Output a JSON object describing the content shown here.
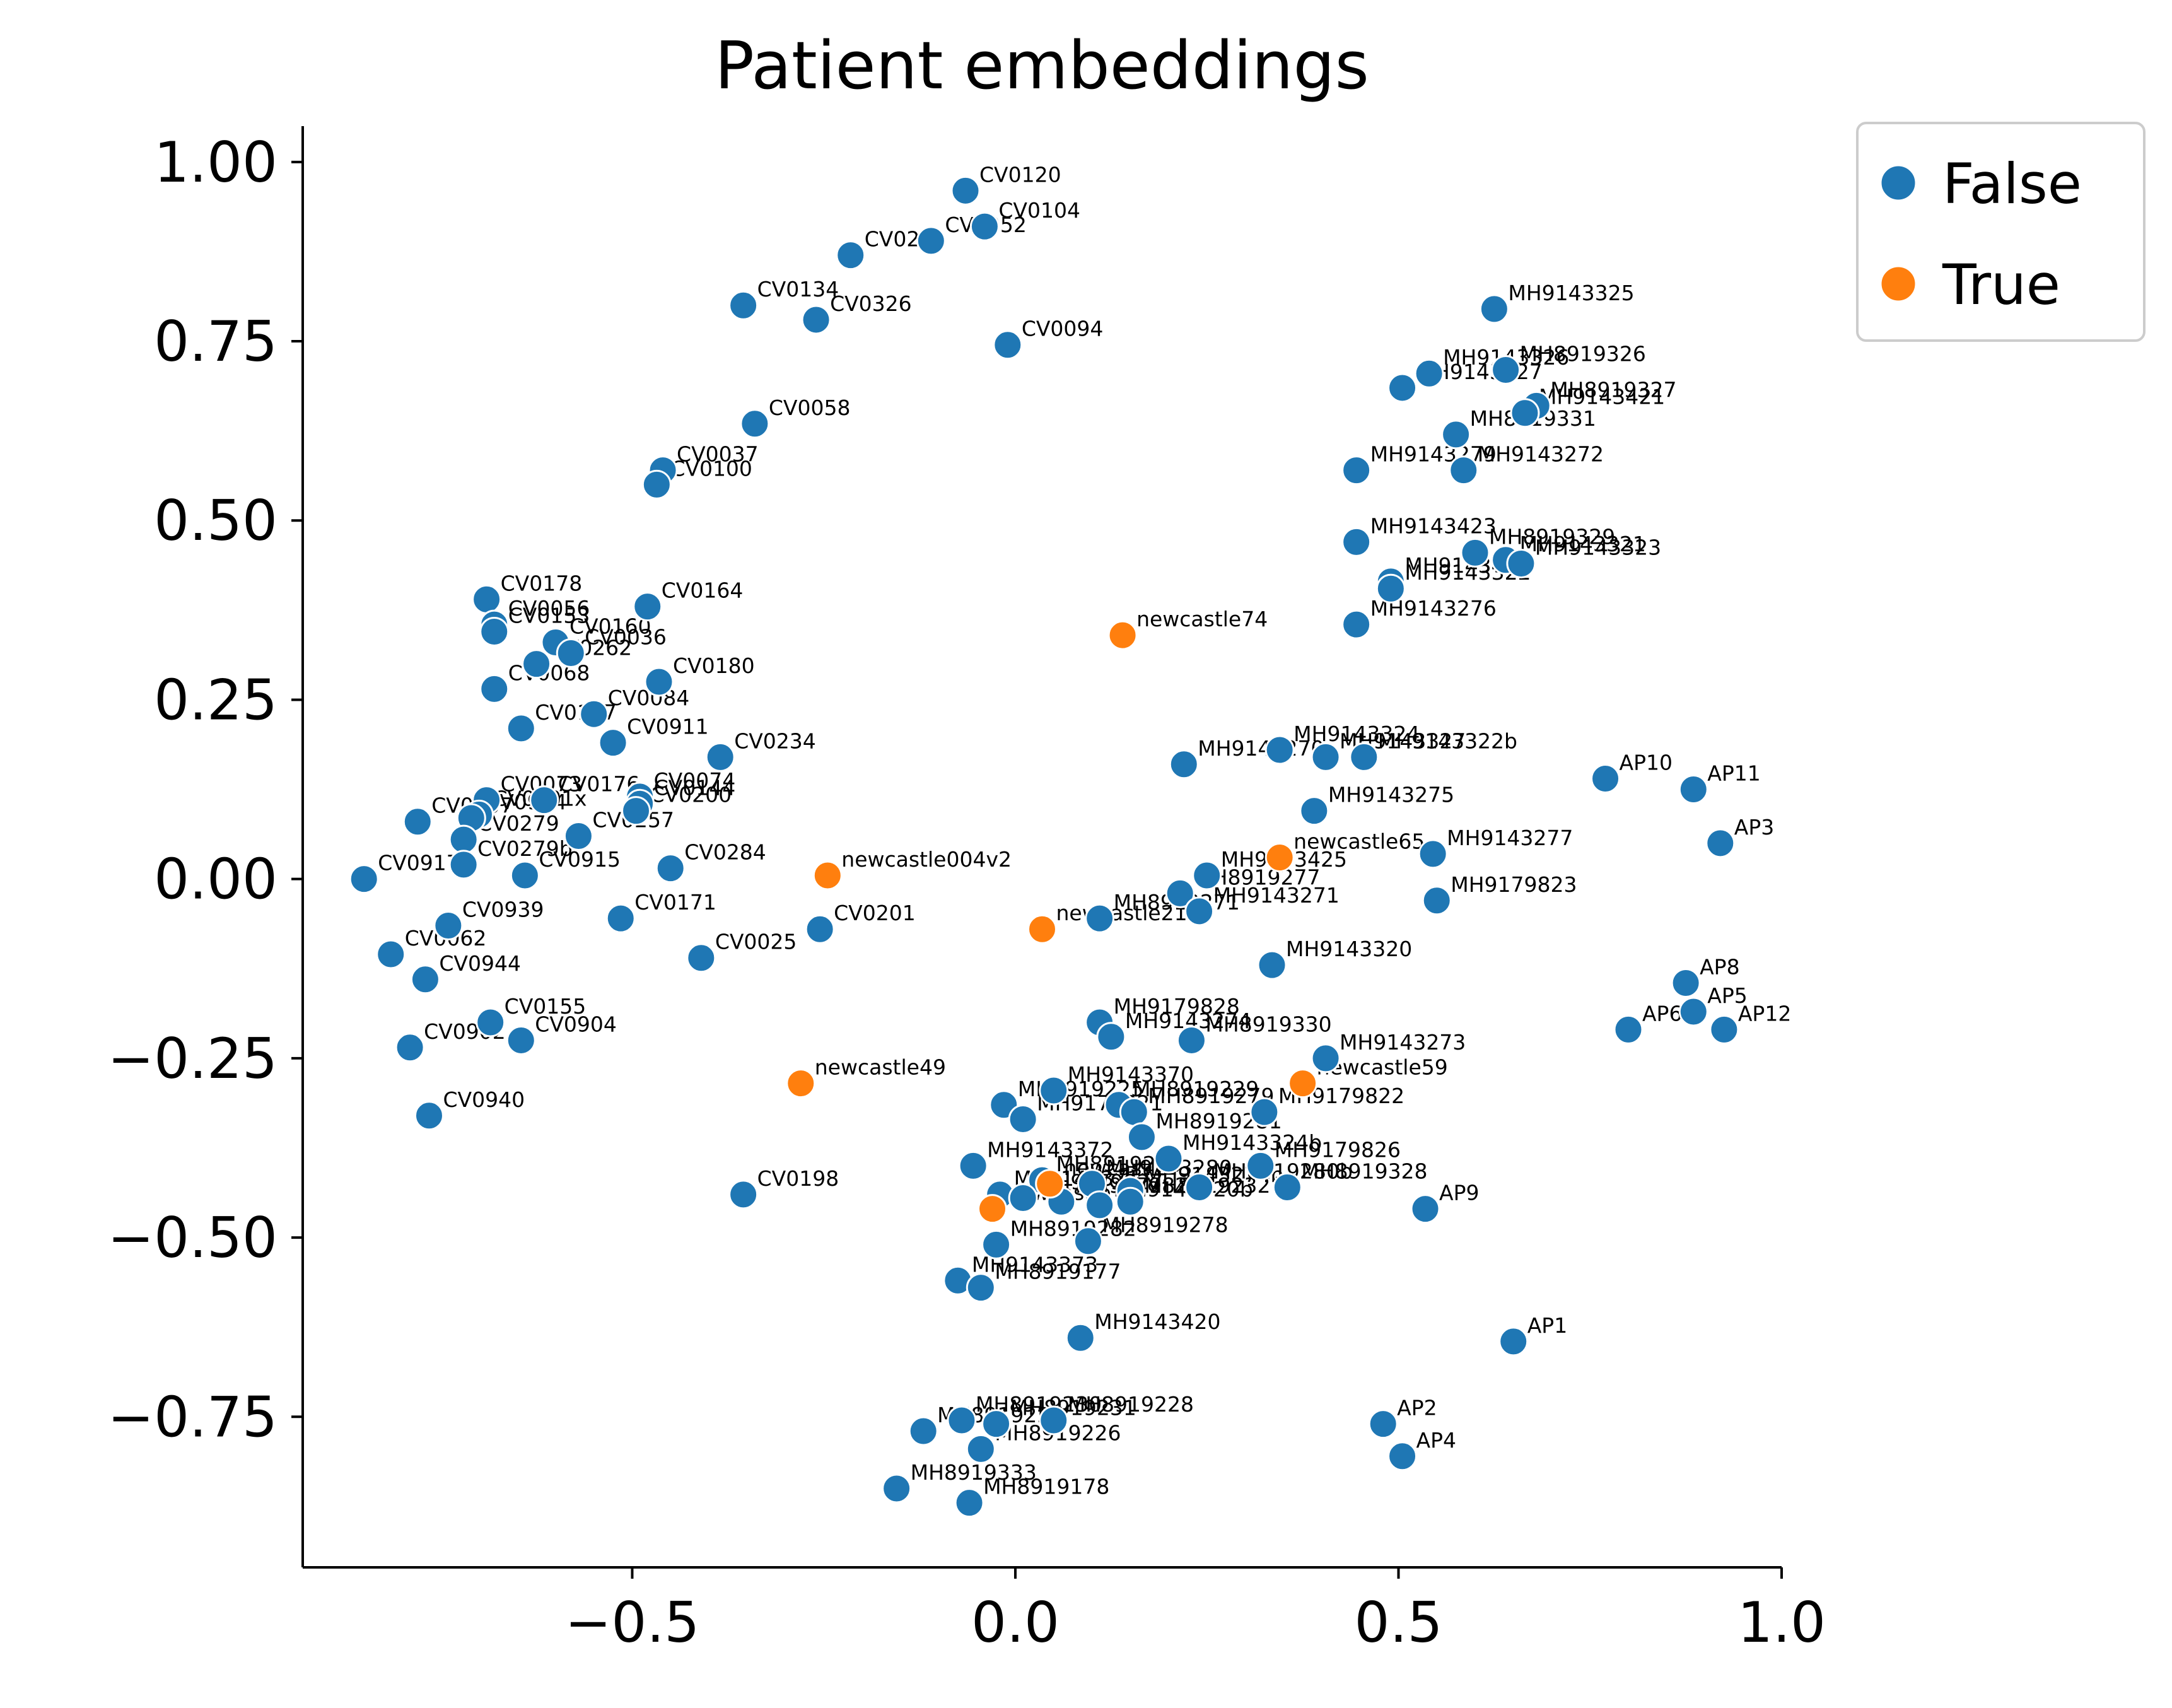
{
  "chart_data": {
    "type": "scatter",
    "title": "Patient embeddings",
    "xlabel": "",
    "ylabel": "",
    "xlim": [
      -0.93,
      1.0
    ],
    "ylim": [
      -0.96,
      1.05
    ],
    "xticks": [
      -0.5,
      0.0,
      0.5,
      1.0
    ],
    "xtick_labels": [
      "−0.5",
      "0.0",
      "0.5",
      "1.0"
    ],
    "yticks": [
      1.0,
      0.75,
      0.5,
      0.25,
      0.0,
      -0.25,
      -0.5,
      -0.75
    ],
    "ytick_labels": [
      "1.00",
      "0.75",
      "0.50",
      "0.25",
      "0.00",
      "−0.25",
      "−0.50",
      "−0.75"
    ],
    "grid": false,
    "legend": {
      "placement": "outside-top-right",
      "entries": [
        {
          "label": "False",
          "color": "#1f77b4"
        },
        {
          "label": "True",
          "color": "#ff7f0e"
        }
      ]
    },
    "series": [
      {
        "name": "False",
        "color": "#1f77b4",
        "points": [
          {
            "x": -0.065,
            "y": 0.96,
            "label": "CV0120"
          },
          {
            "x": -0.04,
            "y": 0.91,
            "label": "CV0104"
          },
          {
            "x": -0.11,
            "y": 0.89,
            "label": "CV0052"
          },
          {
            "x": -0.215,
            "y": 0.87,
            "label": "CV0231"
          },
          {
            "x": -0.355,
            "y": 0.8,
            "label": "CV0134"
          },
          {
            "x": -0.26,
            "y": 0.78,
            "label": "CV0326"
          },
          {
            "x": -0.01,
            "y": 0.745,
            "label": "CV0094"
          },
          {
            "x": -0.34,
            "y": 0.635,
            "label": "CV0058"
          },
          {
            "x": -0.46,
            "y": 0.57,
            "label": "CV0037"
          },
          {
            "x": -0.468,
            "y": 0.55,
            "label": "CV0100"
          },
          {
            "x": -0.69,
            "y": 0.39,
            "label": "CV0178"
          },
          {
            "x": -0.48,
            "y": 0.38,
            "label": "CV0164"
          },
          {
            "x": -0.68,
            "y": 0.355,
            "label": "CV0056"
          },
          {
            "x": -0.68,
            "y": 0.345,
            "label": "CV0153"
          },
          {
            "x": -0.6,
            "y": 0.33,
            "label": "CV0160"
          },
          {
            "x": -0.58,
            "y": 0.315,
            "label": "CV0036"
          },
          {
            "x": -0.625,
            "y": 0.3,
            "label": "CV0262"
          },
          {
            "x": -0.465,
            "y": 0.275,
            "label": "CV0180"
          },
          {
            "x": -0.68,
            "y": 0.265,
            "label": "CV0068"
          },
          {
            "x": -0.55,
            "y": 0.23,
            "label": "CV0084"
          },
          {
            "x": -0.645,
            "y": 0.21,
            "label": "CV0137"
          },
          {
            "x": -0.525,
            "y": 0.19,
            "label": "CV0911"
          },
          {
            "x": -0.385,
            "y": 0.17,
            "label": "CV0234"
          },
          {
            "x": -0.49,
            "y": 0.115,
            "label": "CV0074"
          },
          {
            "x": -0.49,
            "y": 0.105,
            "label": "CV0144"
          },
          {
            "x": -0.495,
            "y": 0.095,
            "label": "CV0200"
          },
          {
            "x": -0.69,
            "y": 0.11,
            "label": "CV0073"
          },
          {
            "x": -0.615,
            "y": 0.11,
            "label": "CV0176"
          },
          {
            "x": -0.7,
            "y": 0.09,
            "label": "CV0201x"
          },
          {
            "x": -0.78,
            "y": 0.08,
            "label": "CV0907"
          },
          {
            "x": -0.71,
            "y": 0.085,
            "label": "CV0934"
          },
          {
            "x": -0.57,
            "y": 0.06,
            "label": "CV0257"
          },
          {
            "x": -0.72,
            "y": 0.055,
            "label": "CV0279"
          },
          {
            "x": -0.72,
            "y": 0.02,
            "label": "CV0279b"
          },
          {
            "x": -0.64,
            "y": 0.005,
            "label": "CV0915"
          },
          {
            "x": -0.45,
            "y": 0.015,
            "label": "CV0284"
          },
          {
            "x": -0.85,
            "y": 0.0,
            "label": "CV0917"
          },
          {
            "x": -0.74,
            "y": -0.065,
            "label": "CV0939"
          },
          {
            "x": -0.515,
            "y": -0.055,
            "label": "CV0171"
          },
          {
            "x": -0.255,
            "y": -0.07,
            "label": "CV0201"
          },
          {
            "x": -0.815,
            "y": -0.105,
            "label": "CV0062"
          },
          {
            "x": -0.41,
            "y": -0.11,
            "label": "CV0025"
          },
          {
            "x": -0.77,
            "y": -0.14,
            "label": "CV0944"
          },
          {
            "x": -0.685,
            "y": -0.2,
            "label": "CV0155"
          },
          {
            "x": -0.79,
            "y": -0.235,
            "label": "CV0902"
          },
          {
            "x": -0.645,
            "y": -0.225,
            "label": "CV0904"
          },
          {
            "x": -0.765,
            "y": -0.33,
            "label": "CV0940"
          },
          {
            "x": -0.355,
            "y": -0.44,
            "label": "CV0198"
          },
          {
            "x": 0.625,
            "y": 0.795,
            "label": "MH9143325"
          },
          {
            "x": 0.64,
            "y": 0.71,
            "label": "MH8919326"
          },
          {
            "x": 0.54,
            "y": 0.705,
            "label": "MH9143326"
          },
          {
            "x": 0.505,
            "y": 0.685,
            "label": "MH9143427"
          },
          {
            "x": 0.68,
            "y": 0.66,
            "label": "MH8919327"
          },
          {
            "x": 0.665,
            "y": 0.65,
            "label": "MH9143421"
          },
          {
            "x": 0.575,
            "y": 0.62,
            "label": "MH8919331"
          },
          {
            "x": 0.445,
            "y": 0.57,
            "label": "MH9143279"
          },
          {
            "x": 0.585,
            "y": 0.57,
            "label": "MH9143272"
          },
          {
            "x": 0.445,
            "y": 0.47,
            "label": "MH9143423"
          },
          {
            "x": 0.6,
            "y": 0.455,
            "label": "MH8919329"
          },
          {
            "x": 0.64,
            "y": 0.445,
            "label": "MH9143321"
          },
          {
            "x": 0.66,
            "y": 0.44,
            "label": "MH9143323"
          },
          {
            "x": 0.49,
            "y": 0.415,
            "label": "MH9143422"
          },
          {
            "x": 0.49,
            "y": 0.405,
            "label": "MH9143322"
          },
          {
            "x": 0.445,
            "y": 0.355,
            "label": "MH9143276"
          },
          {
            "x": 0.22,
            "y": 0.16,
            "label": "MH9143270"
          },
          {
            "x": 0.345,
            "y": 0.18,
            "label": "MH9143324"
          },
          {
            "x": 0.405,
            "y": 0.17,
            "label": "MH9143327"
          },
          {
            "x": 0.455,
            "y": 0.17,
            "label": "MH9143322b"
          },
          {
            "x": 0.39,
            "y": 0.095,
            "label": "MH9143275"
          },
          {
            "x": 0.545,
            "y": 0.035,
            "label": "MH9143277"
          },
          {
            "x": 0.25,
            "y": 0.005,
            "label": "MH9143425"
          },
          {
            "x": 0.215,
            "y": -0.02,
            "label": "MH8919277"
          },
          {
            "x": 0.24,
            "y": -0.045,
            "label": "MH9143271"
          },
          {
            "x": 0.55,
            "y": -0.03,
            "label": "MH9179823"
          },
          {
            "x": 0.11,
            "y": -0.055,
            "label": "MH8919271"
          },
          {
            "x": 0.335,
            "y": -0.12,
            "label": "MH9143320"
          },
          {
            "x": 0.11,
            "y": -0.2,
            "label": "MH9179828"
          },
          {
            "x": 0.125,
            "y": -0.22,
            "label": "MH9143274"
          },
          {
            "x": 0.23,
            "y": -0.225,
            "label": "MH8919330"
          },
          {
            "x": 0.405,
            "y": -0.25,
            "label": "MH9143273"
          },
          {
            "x": 0.05,
            "y": -0.295,
            "label": "MH9143370"
          },
          {
            "x": -0.015,
            "y": -0.315,
            "label": "MH8919225"
          },
          {
            "x": 0.01,
            "y": -0.335,
            "label": "MH9179821"
          },
          {
            "x": 0.135,
            "y": -0.315,
            "label": "MH8919229"
          },
          {
            "x": 0.155,
            "y": -0.325,
            "label": "MH8919279"
          },
          {
            "x": 0.325,
            "y": -0.325,
            "label": "MH9179822"
          },
          {
            "x": 0.165,
            "y": -0.36,
            "label": "MH8919281"
          },
          {
            "x": -0.055,
            "y": -0.4,
            "label": "MH9143372"
          },
          {
            "x": 0.2,
            "y": -0.39,
            "label": "MH9143324b"
          },
          {
            "x": 0.32,
            "y": -0.4,
            "label": "MH9179826"
          },
          {
            "x": 0.355,
            "y": -0.43,
            "label": "MH8919328"
          },
          {
            "x": 0.035,
            "y": -0.42,
            "label": "MH8919280"
          },
          {
            "x": 0.1,
            "y": -0.425,
            "label": "MH9143280"
          },
          {
            "x": 0.15,
            "y": -0.435,
            "label": "MH9143274b"
          },
          {
            "x": 0.24,
            "y": -0.43,
            "label": "MH8919280b"
          },
          {
            "x": -0.02,
            "y": -0.44,
            "label": "MH9143371"
          },
          {
            "x": 0.01,
            "y": -0.445,
            "label": "MH9179827"
          },
          {
            "x": 0.06,
            "y": -0.45,
            "label": "MH9179825"
          },
          {
            "x": 0.11,
            "y": -0.455,
            "label": "MH9143320b"
          },
          {
            "x": 0.15,
            "y": -0.45,
            "label": "MH8919232"
          },
          {
            "x": 0.535,
            "y": -0.46,
            "label": "AP9"
          },
          {
            "x": -0.025,
            "y": -0.51,
            "label": "MH8919282"
          },
          {
            "x": 0.095,
            "y": -0.505,
            "label": "MH8919278"
          },
          {
            "x": -0.075,
            "y": -0.56,
            "label": "MH9143373"
          },
          {
            "x": -0.045,
            "y": -0.57,
            "label": "MH8919177"
          },
          {
            "x": 0.085,
            "y": -0.64,
            "label": "MH9143420"
          },
          {
            "x": 0.65,
            "y": -0.645,
            "label": "AP1"
          },
          {
            "x": -0.07,
            "y": -0.755,
            "label": "MH8919230"
          },
          {
            "x": -0.12,
            "y": -0.77,
            "label": "MH8919227"
          },
          {
            "x": -0.025,
            "y": -0.76,
            "label": "MH8919231"
          },
          {
            "x": 0.05,
            "y": -0.755,
            "label": "MH8919228"
          },
          {
            "x": -0.045,
            "y": -0.795,
            "label": "MH8919226"
          },
          {
            "x": 0.48,
            "y": -0.76,
            "label": "AP2"
          },
          {
            "x": 0.505,
            "y": -0.805,
            "label": "AP4"
          },
          {
            "x": -0.155,
            "y": -0.85,
            "label": "MH8919333"
          },
          {
            "x": -0.06,
            "y": -0.87,
            "label": "MH8919178"
          },
          {
            "x": 0.77,
            "y": 0.14,
            "label": "AP10"
          },
          {
            "x": 0.885,
            "y": 0.125,
            "label": "AP11"
          },
          {
            "x": 0.92,
            "y": 0.05,
            "label": "AP3"
          },
          {
            "x": 0.875,
            "y": -0.145,
            "label": "AP8"
          },
          {
            "x": 0.885,
            "y": -0.185,
            "label": "AP5"
          },
          {
            "x": 0.8,
            "y": -0.21,
            "label": "AP6"
          },
          {
            "x": 0.925,
            "y": -0.21,
            "label": "AP12"
          }
        ]
      },
      {
        "name": "True",
        "color": "#ff7f0e",
        "points": [
          {
            "x": 0.14,
            "y": 0.34,
            "label": "newcastle74"
          },
          {
            "x": -0.245,
            "y": 0.005,
            "label": "newcastle004v2"
          },
          {
            "x": 0.345,
            "y": 0.03,
            "label": "newcastle65"
          },
          {
            "x": 0.035,
            "y": -0.07,
            "label": "newcastle21v2"
          },
          {
            "x": -0.28,
            "y": -0.285,
            "label": "newcastle49"
          },
          {
            "x": 0.375,
            "y": -0.285,
            "label": "newcastle59"
          },
          {
            "x": 0.045,
            "y": -0.425,
            "label": "newcastle"
          },
          {
            "x": -0.03,
            "y": -0.46,
            "label": "newcastle"
          }
        ]
      }
    ]
  }
}
